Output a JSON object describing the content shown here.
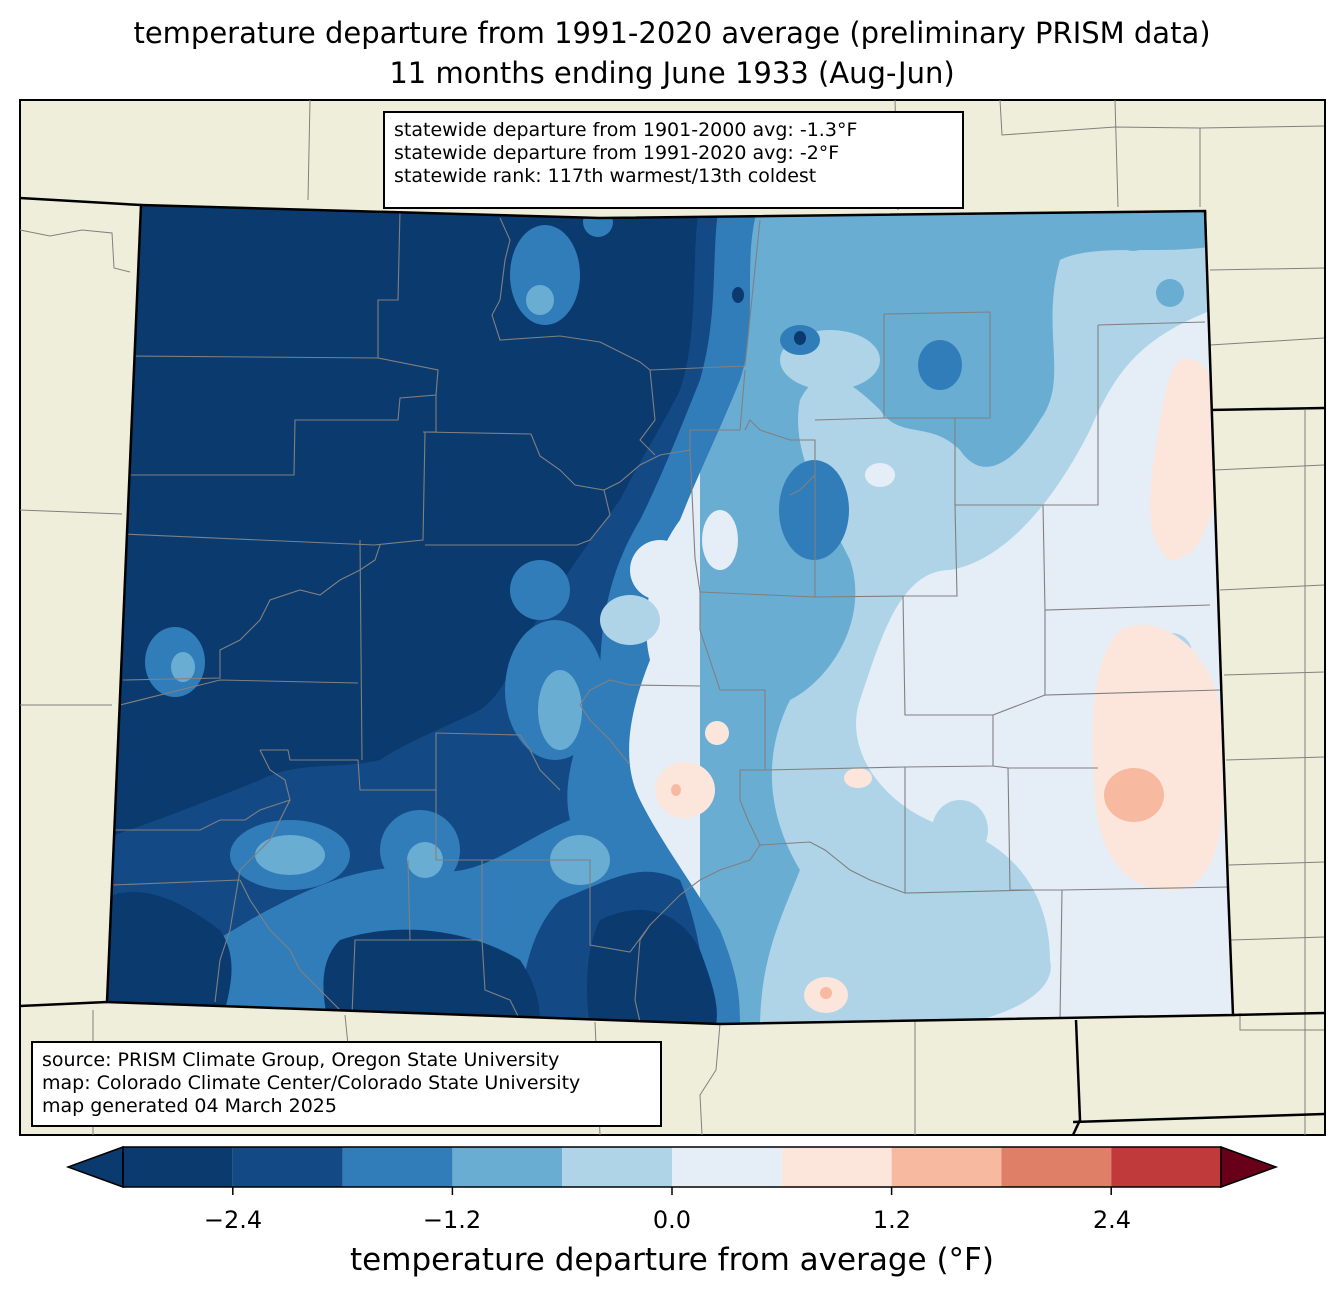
{
  "title": {
    "line1": "temperature departure from 1991-2020 average (preliminary PRISM data)",
    "line2": "11 months ending June 1933 (Aug-Jun)"
  },
  "stats": {
    "line1": "statewide departure from 1901-2000 avg: -1.3°F",
    "line2": "statewide departure from 1991-2020 avg: -2°F",
    "line3": "statewide rank: 117th warmest/13th coldest"
  },
  "source": {
    "line1": "source: PRISM Climate Group, Oregon State University",
    "line2": "map: Colorado Climate Center/Colorado State University",
    "line3": "map generated 04 March 2025"
  },
  "colorbar": {
    "label": "temperature departure from average (°F)",
    "ticks": [
      "−2.4",
      "−1.2",
      "0.0",
      "1.2",
      "2.4"
    ],
    "bin_edges": [
      -3.0,
      -2.4,
      -1.8,
      -1.2,
      -0.6,
      0.0,
      0.6,
      1.2,
      1.8,
      2.4,
      3.0
    ],
    "colors": [
      "#0b3a6e",
      "#134a86",
      "#317dba",
      "#6aadd3",
      "#afd4e7",
      "#e5eef7",
      "#fce6dc",
      "#f7b99f",
      "#e07f67",
      "#c03a3b",
      "#870e25"
    ],
    "under_color": "#0b3a6e",
    "over_color": "#670018"
  },
  "map_colors": {
    "land": "#efeedb",
    "county_lines": "#808080",
    "borders": "#000000"
  }
}
